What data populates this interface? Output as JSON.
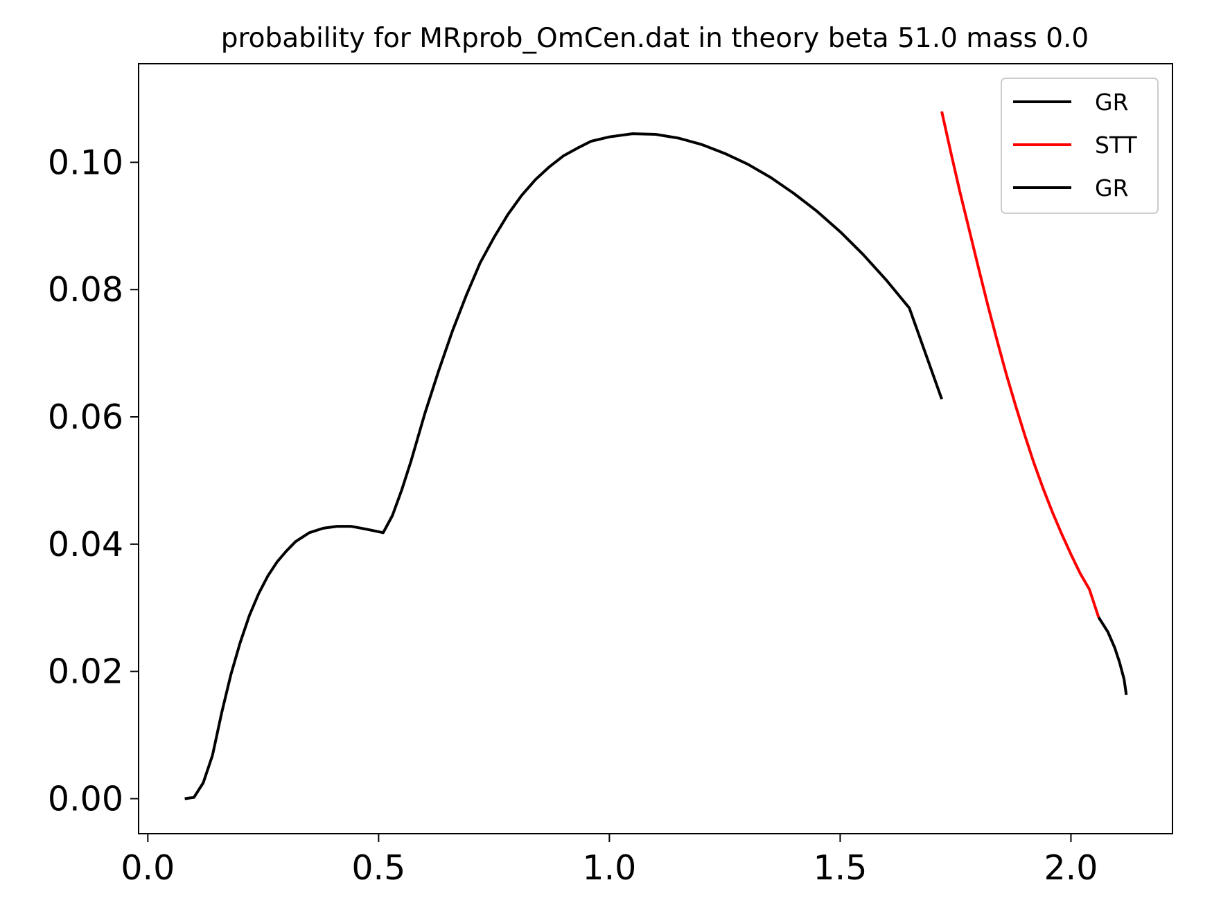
{
  "chart_data": {
    "type": "line",
    "title": "probability for MRprob_OmCen.dat in theory beta 51.0 mass 0.0",
    "xlabel": "",
    "ylabel": "",
    "xlim": [
      -0.02,
      2.22
    ],
    "ylim": [
      -0.0055,
      0.1155
    ],
    "xticks": [
      0.0,
      0.5,
      1.0,
      1.5,
      2.0
    ],
    "xtick_labels": [
      "0.0",
      "0.5",
      "1.0",
      "1.5",
      "2.0"
    ],
    "yticks": [
      0.0,
      0.02,
      0.04,
      0.06,
      0.08,
      0.1
    ],
    "ytick_labels": [
      "0.00",
      "0.02",
      "0.04",
      "0.06",
      "0.08",
      "0.10"
    ],
    "grid": false,
    "legend_position": "top-right",
    "series": [
      {
        "name": "GR",
        "color": "#000000",
        "x": [
          0.08,
          0.1,
          0.12,
          0.14,
          0.16,
          0.18,
          0.2,
          0.22,
          0.24,
          0.26,
          0.28,
          0.3,
          0.32,
          0.35,
          0.38,
          0.41,
          0.44,
          0.47,
          0.51,
          0.53,
          0.55,
          0.57,
          0.6,
          0.63,
          0.66,
          0.69,
          0.72,
          0.75,
          0.78,
          0.81,
          0.84,
          0.87,
          0.9,
          0.93,
          0.96,
          1.0,
          1.05,
          1.1,
          1.15,
          1.2,
          1.25,
          1.3,
          1.35,
          1.4,
          1.45,
          1.5,
          1.55,
          1.6,
          1.65,
          1.72
        ],
        "y": [
          0.0,
          0.0002,
          0.0025,
          0.0068,
          0.0135,
          0.0195,
          0.0245,
          0.0288,
          0.0322,
          0.035,
          0.0372,
          0.0389,
          0.0404,
          0.0418,
          0.0425,
          0.0428,
          0.0428,
          0.0424,
          0.0418,
          0.0445,
          0.0485,
          0.053,
          0.0605,
          0.0672,
          0.0735,
          0.0791,
          0.0842,
          0.0882,
          0.0918,
          0.0948,
          0.0973,
          0.0993,
          0.101,
          0.1022,
          0.1033,
          0.104,
          0.1045,
          0.1044,
          0.1038,
          0.1028,
          0.1014,
          0.0997,
          0.0976,
          0.0951,
          0.0923,
          0.0891,
          0.0855,
          0.0815,
          0.0771,
          0.0628
        ]
      },
      {
        "name": "STT",
        "color": "#ff0000",
        "x": [
          1.72,
          1.74,
          1.76,
          1.78,
          1.8,
          1.82,
          1.84,
          1.86,
          1.88,
          1.9,
          1.92,
          1.94,
          1.96,
          1.98,
          2.0,
          2.02,
          2.04,
          2.06
        ],
        "y": [
          0.108,
          0.1015,
          0.0952,
          0.0893,
          0.0833,
          0.0775,
          0.072,
          0.0667,
          0.0618,
          0.0571,
          0.0527,
          0.0487,
          0.045,
          0.0416,
          0.0384,
          0.0354,
          0.0329,
          0.0285
        ]
      },
      {
        "name": "GR",
        "color": "#000000",
        "x": [
          2.06,
          2.08,
          2.095,
          2.105,
          2.115,
          2.12
        ],
        "y": [
          0.0285,
          0.0262,
          0.0237,
          0.0215,
          0.0188,
          0.0163
        ]
      }
    ]
  }
}
